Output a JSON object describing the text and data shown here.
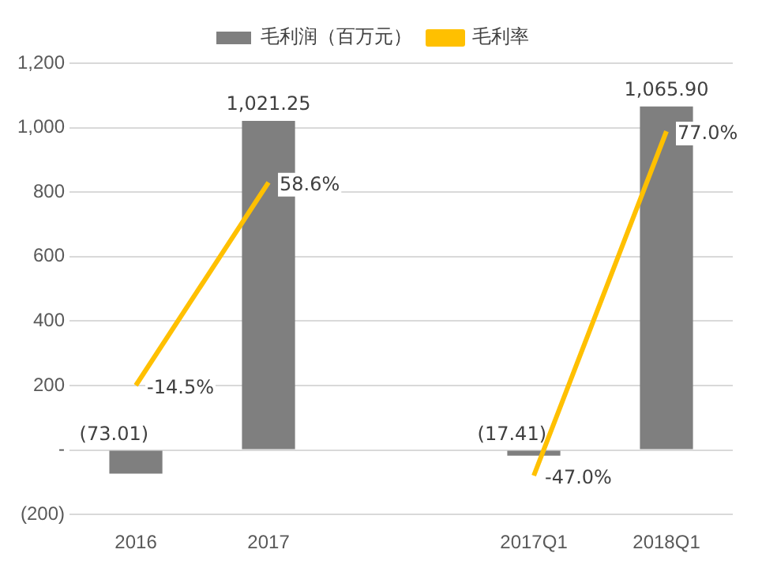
{
  "chart_data": {
    "type": "bar",
    "categories": [
      "2016",
      "2017",
      null,
      "2017Q1",
      "2018Q1"
    ],
    "series": [
      {
        "name": "毛利润（百万元）",
        "color": "#7f7f7f",
        "values": [
          -73.01,
          1021.25,
          null,
          -17.41,
          1065.9
        ],
        "value_labels": [
          "(73.01)",
          "1,021.25",
          null,
          "(17.41)",
          "1,065.90"
        ]
      },
      {
        "name": "毛利率",
        "type": "line",
        "axis": "y2",
        "color": "#ffc000",
        "values": [
          -14.5,
          58.6,
          null,
          -47.0,
          77.0
        ],
        "value_labels": [
          "-14.5%",
          "58.6%",
          null,
          "-47.0%",
          "77.0%"
        ]
      }
    ],
    "ylim": [
      -200,
      1200
    ],
    "yticks": [
      {
        "value": -200,
        "label": "(200)"
      },
      {
        "value": 0,
        "label": "-"
      },
      200,
      400,
      600,
      800,
      {
        "value": 1000,
        "label": "1,000"
      },
      {
        "value": 1200,
        "label": "1,200"
      }
    ],
    "y2lim": [
      -61,
      101.5
    ],
    "grid": "y",
    "legend": "top",
    "marker": "none"
  }
}
